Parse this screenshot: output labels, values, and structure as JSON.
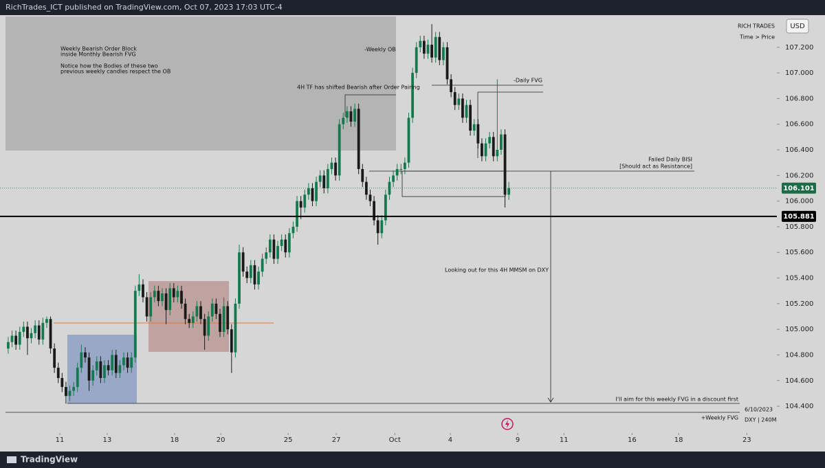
{
  "header": {
    "text": "RichTrades_ICT published on TradingView.com, Oct 07, 2023 17:03 UTC-4"
  },
  "chart_data": {
    "type": "candlestick",
    "symbol_label": "RICH TRADES",
    "currency": "USD",
    "scale_label": "Time > Price",
    "up_color": "#137a4f",
    "down_color": "#1a1a1a",
    "open": [
      104.85,
      104.9,
      104.95,
      104.88,
      104.98,
      105.02,
      104.93,
      104.97,
      105.03,
      104.92,
      105.05,
      105.08,
      104.85,
      104.7,
      104.62,
      104.55,
      104.48,
      104.52,
      104.55,
      104.7,
      104.82,
      104.78,
      104.6,
      104.68,
      104.75,
      104.62,
      104.72,
      104.68,
      104.8,
      104.66,
      104.72,
      104.78,
      104.7,
      104.78,
      105.3,
      105.35,
      105.25,
      105.1,
      105.25,
      105.3,
      105.22,
      105.28,
      105.15,
      105.32,
      105.25,
      105.3,
      105.2,
      105.08,
      105.05,
      105.1,
      105.18,
      105.08,
      104.95,
      105.1,
      105.2,
      105.12,
      104.98,
      105.18,
      105.0,
      104.82,
      105.2,
      105.6,
      105.45,
      105.4,
      105.5,
      105.35,
      105.45,
      105.55,
      105.6,
      105.7,
      105.55,
      105.65,
      105.7,
      105.6,
      105.75,
      105.8,
      106.0,
      105.95,
      106.05,
      106.1,
      106.0,
      106.15,
      106.2,
      106.1,
      106.25,
      106.3,
      106.2,
      106.6,
      106.65,
      106.7,
      106.62,
      106.72,
      106.25,
      106.15,
      106.05,
      106.0,
      105.85,
      105.75,
      105.85,
      106.05,
      106.15,
      106.2,
      106.25,
      106.25,
      106.3,
      106.65,
      107.0,
      107.2,
      107.25,
      107.15,
      107.22,
      107.12,
      107.28,
      107.1,
      107.2,
      106.95,
      106.85,
      106.75,
      106.8,
      106.65,
      106.75,
      106.55,
      106.6,
      106.45,
      106.35,
      106.45,
      106.5,
      106.35,
      106.4,
      106.52,
      106.05
    ],
    "high": [
      104.94,
      104.99,
      104.99,
      105.02,
      105.06,
      105.06,
      105.01,
      105.07,
      105.07,
      105.09,
      105.1,
      105.1,
      104.89,
      104.74,
      104.66,
      104.59,
      104.56,
      104.59,
      104.74,
      104.88,
      104.86,
      104.82,
      104.72,
      104.79,
      104.79,
      104.76,
      104.76,
      104.84,
      104.84,
      104.76,
      104.82,
      104.82,
      104.82,
      105.34,
      105.43,
      105.39,
      105.29,
      105.29,
      105.34,
      105.34,
      105.32,
      105.32,
      105.36,
      105.36,
      105.34,
      105.34,
      105.24,
      105.12,
      105.14,
      105.22,
      105.22,
      105.12,
      105.14,
      105.24,
      105.24,
      105.16,
      105.25,
      105.22,
      105.04,
      105.24,
      105.66,
      105.64,
      105.49,
      105.54,
      105.54,
      105.49,
      105.59,
      105.64,
      105.74,
      105.74,
      105.69,
      105.74,
      105.74,
      105.79,
      105.84,
      106.04,
      106.04,
      106.09,
      106.14,
      106.14,
      106.19,
      106.24,
      106.24,
      106.29,
      106.34,
      106.34,
      106.64,
      106.69,
      106.74,
      106.74,
      106.76,
      106.76,
      106.29,
      106.19,
      106.09,
      106.04,
      105.89,
      105.89,
      106.09,
      106.19,
      106.24,
      106.29,
      106.29,
      106.34,
      106.69,
      107.04,
      107.24,
      107.29,
      107.29,
      107.26,
      107.38,
      107.32,
      107.32,
      107.24,
      107.24,
      106.99,
      106.89,
      106.84,
      106.84,
      106.79,
      106.79,
      106.64,
      106.64,
      106.49,
      106.49,
      106.54,
      106.54,
      106.95,
      106.56,
      106.56,
      106.15
    ],
    "low": [
      104.81,
      104.86,
      104.84,
      104.84,
      104.94,
      104.8,
      104.89,
      104.93,
      104.88,
      104.88,
      105.01,
      104.81,
      104.66,
      104.58,
      104.51,
      104.42,
      104.44,
      104.48,
      104.51,
      104.66,
      104.74,
      104.52,
      104.56,
      104.64,
      104.58,
      104.58,
      104.64,
      104.64,
      104.62,
      104.62,
      104.68,
      104.66,
      104.66,
      104.74,
      105.26,
      105.21,
      105.06,
      105.06,
      105.21,
      105.18,
      105.18,
      105.04,
      105.11,
      105.21,
      105.21,
      105.16,
      105.04,
      105.01,
      105.01,
      105.06,
      105.04,
      104.84,
      104.91,
      105.06,
      105.08,
      104.94,
      104.94,
      104.96,
      104.66,
      104.78,
      105.16,
      105.41,
      105.36,
      105.36,
      105.31,
      105.31,
      105.41,
      105.51,
      105.56,
      105.51,
      105.51,
      105.61,
      105.56,
      105.56,
      105.71,
      105.76,
      105.86,
      105.91,
      106.01,
      105.96,
      105.96,
      106.11,
      106.06,
      106.06,
      106.21,
      106.16,
      106.16,
      106.56,
      106.61,
      106.58,
      106.58,
      106.21,
      106.11,
      106.01,
      105.96,
      105.81,
      105.66,
      105.71,
      105.81,
      106.01,
      106.11,
      106.16,
      106.21,
      106.21,
      106.26,
      106.61,
      106.96,
      107.16,
      107.11,
      107.11,
      107.08,
      107.08,
      107.06,
      107.06,
      106.91,
      106.81,
      106.71,
      106.71,
      106.61,
      106.61,
      106.51,
      106.51,
      106.41,
      106.31,
      106.31,
      106.41,
      106.31,
      106.31,
      106.36,
      105.95,
      106.01
    ],
    "close": [
      104.9,
      104.95,
      104.88,
      104.98,
      105.02,
      104.93,
      104.97,
      105.03,
      104.92,
      105.05,
      105.08,
      104.85,
      104.7,
      104.62,
      104.55,
      104.48,
      104.52,
      104.55,
      104.7,
      104.82,
      104.78,
      104.6,
      104.68,
      104.75,
      104.62,
      104.72,
      104.68,
      104.8,
      104.66,
      104.72,
      104.78,
      104.7,
      104.78,
      105.3,
      105.35,
      105.25,
      105.1,
      105.25,
      105.3,
      105.22,
      105.28,
      105.15,
      105.32,
      105.25,
      105.3,
      105.2,
      105.08,
      105.05,
      105.1,
      105.18,
      105.08,
      104.95,
      105.1,
      105.2,
      105.12,
      104.98,
      105.18,
      105.0,
      104.82,
      105.2,
      105.6,
      105.45,
      105.4,
      105.5,
      105.35,
      105.45,
      105.55,
      105.6,
      105.7,
      105.55,
      105.65,
      105.7,
      105.6,
      105.75,
      105.8,
      106.0,
      105.95,
      106.05,
      106.1,
      106.0,
      106.15,
      106.2,
      106.1,
      106.25,
      106.3,
      106.2,
      106.6,
      106.65,
      106.7,
      106.62,
      106.72,
      106.25,
      106.15,
      106.05,
      106.0,
      105.85,
      105.75,
      105.85,
      106.05,
      106.15,
      106.2,
      106.25,
      106.25,
      106.3,
      106.65,
      107.0,
      107.2,
      107.25,
      107.15,
      107.22,
      107.12,
      107.28,
      107.1,
      107.2,
      106.95,
      106.85,
      106.75,
      106.8,
      106.65,
      106.75,
      106.55,
      106.6,
      106.45,
      106.35,
      106.45,
      106.5,
      106.35,
      106.4,
      106.52,
      106.05,
      106.101
    ],
    "xlim": [
      -0.7,
      199.6
    ],
    "xticks": [
      {
        "value": 13.4,
        "label": "11"
      },
      {
        "value": 25.7,
        "label": "13"
      },
      {
        "value": 43.2,
        "label": "18"
      },
      {
        "value": 55.2,
        "label": "20"
      },
      {
        "value": 72.7,
        "label": "25"
      },
      {
        "value": 85.2,
        "label": "27"
      },
      {
        "value": 100.4,
        "label": "Oct"
      },
      {
        "value": 114.8,
        "label": "4"
      },
      {
        "value": 132.3,
        "label": "9"
      },
      {
        "value": 144.3,
        "label": "11"
      },
      {
        "value": 162,
        "label": "16"
      },
      {
        "value": 174.1,
        "label": "18"
      },
      {
        "value": 191.8,
        "label": "23"
      }
    ],
    "ylim": [
      104.2,
      107.44
    ],
    "yticks": [
      {
        "value": 104.4,
        "label": "104.400"
      },
      {
        "value": 104.6,
        "label": "104.600"
      },
      {
        "value": 104.8,
        "label": "104.800"
      },
      {
        "value": 105.0,
        "label": "105.000"
      },
      {
        "value": 105.2,
        "label": "105.200"
      },
      {
        "value": 105.4,
        "label": "105.400"
      },
      {
        "value": 105.6,
        "label": "105.600"
      },
      {
        "value": 105.8,
        "label": "105.800"
      },
      {
        "value": 106.0,
        "label": "106.000"
      },
      {
        "value": 106.2,
        "label": "106.200"
      },
      {
        "value": 106.4,
        "label": "106.400"
      },
      {
        "value": 106.6,
        "label": "106.600"
      },
      {
        "value": 106.8,
        "label": "106.800"
      },
      {
        "value": 107.0,
        "label": "107.000"
      },
      {
        "value": 107.2,
        "label": "107.200"
      }
    ],
    "price_lines": [
      {
        "value": 106.101,
        "label": "106.101",
        "color": "#1e6b4a",
        "style": "dotted"
      },
      {
        "value": 105.881,
        "label": "105.881",
        "color": "#000000",
        "style": "solid"
      }
    ],
    "annotations": [
      "Weekly Bearish Order Block",
      "inside Monthly Bearish FVG",
      "Notice how the Bodies of these two",
      "previous weekly candles respect the OB",
      "-Weekly OB",
      "4H TF has shifted Bearish after Order Pairing",
      "-Daily FVG",
      "Failed Daily BISI",
      "[Should act as Resistance]",
      "Looking out for this 4H MMSM on DXY",
      "I'll aim for this weekly FVG in a discount first",
      "+Weekly FVG"
    ],
    "info": [
      "6/10/2023",
      "DXY | 240M"
    ]
  },
  "footer": {
    "brand": "TradingView"
  }
}
